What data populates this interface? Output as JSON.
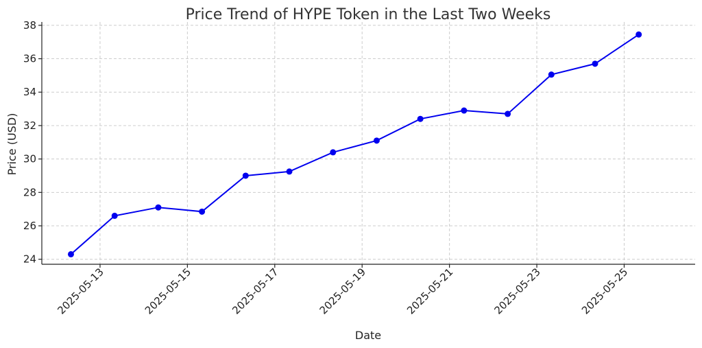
{
  "chart_data": {
    "type": "line",
    "title": "Price Trend of HYPE Token in the Last Two Weeks",
    "xlabel": "Date",
    "ylabel": "Price (USD)",
    "grid": true,
    "x_range": [
      "2025-05-11T16:00",
      "2025-05-26T15:00"
    ],
    "ylim": [
      23.7,
      38.2
    ],
    "x_ticks": [
      "2025-05-13",
      "2025-05-15",
      "2025-05-17",
      "2025-05-19",
      "2025-05-21",
      "2025-05-23",
      "2025-05-25"
    ],
    "y_ticks": [
      24,
      26,
      28,
      30,
      32,
      34,
      36,
      38
    ],
    "series": [
      {
        "color": "#0000ee",
        "x": [
          "2025-05-12T08:00",
          "2025-05-13T08:00",
          "2025-05-14T08:00",
          "2025-05-15T08:00",
          "2025-05-16T08:00",
          "2025-05-17T08:00",
          "2025-05-18T08:00",
          "2025-05-19T08:00",
          "2025-05-20T08:00",
          "2025-05-21T08:00",
          "2025-05-22T08:00",
          "2025-05-23T08:00",
          "2025-05-24T08:00",
          "2025-05-25T08:00"
        ],
        "y": [
          24.3,
          26.6,
          27.1,
          26.85,
          29.0,
          29.25,
          30.4,
          31.1,
          32.4,
          32.9,
          32.7,
          35.05,
          35.7,
          37.45
        ]
      }
    ]
  }
}
